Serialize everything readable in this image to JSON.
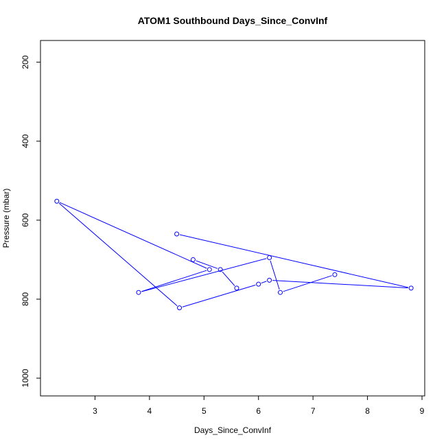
{
  "chart_data": {
    "type": "line",
    "title": "ATOM1 Southbound Days_Since_ConvInf",
    "xlabel": "Days_Since_ConvInf",
    "ylabel": "Pressure (mbar)",
    "xlim": [
      2.0,
      9.05
    ],
    "ylim": [
      1045,
      145
    ],
    "y_reversed": true,
    "x_ticks": [
      3,
      4,
      5,
      6,
      7,
      8,
      9
    ],
    "y_ticks": [
      200,
      400,
      600,
      800,
      1000
    ],
    "grid": false,
    "marker": "open-circle",
    "series": [
      {
        "color": "#0000ff",
        "x": [
          4.5,
          8.8,
          6.2,
          6.0,
          4.55,
          2.3,
          5.1,
          3.8,
          6.2,
          6.4,
          7.4
        ],
        "y": [
          635,
          772,
          752,
          762,
          822,
          552,
          725,
          783,
          695,
          783,
          738
        ]
      },
      {
        "color": "#0000ff",
        "x": [
          4.8,
          5.3,
          5.6
        ],
        "y": [
          700,
          725,
          772
        ]
      }
    ]
  }
}
